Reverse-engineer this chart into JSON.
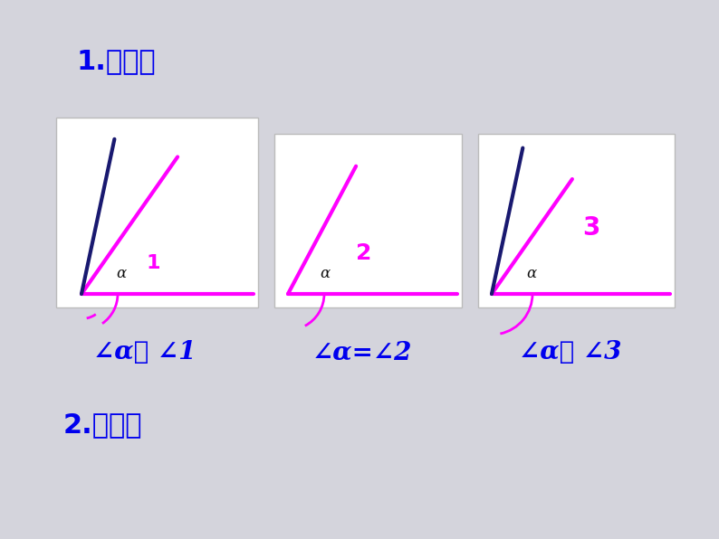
{
  "background_color": "#d4d4dc",
  "title1": "1.叠合法",
  "title2": "2.度量法",
  "label1": "∠α＞ ∠1",
  "label2": "∠α=∠2",
  "label3": "∠α＜ ∠3",
  "magenta": "#FF00FF",
  "darkblue": "#191970",
  "blue_text": "#0000EE",
  "black": "#111111",
  "white": "#FFFFFF",
  "fig_w": 7.94,
  "fig_h": 5.96
}
